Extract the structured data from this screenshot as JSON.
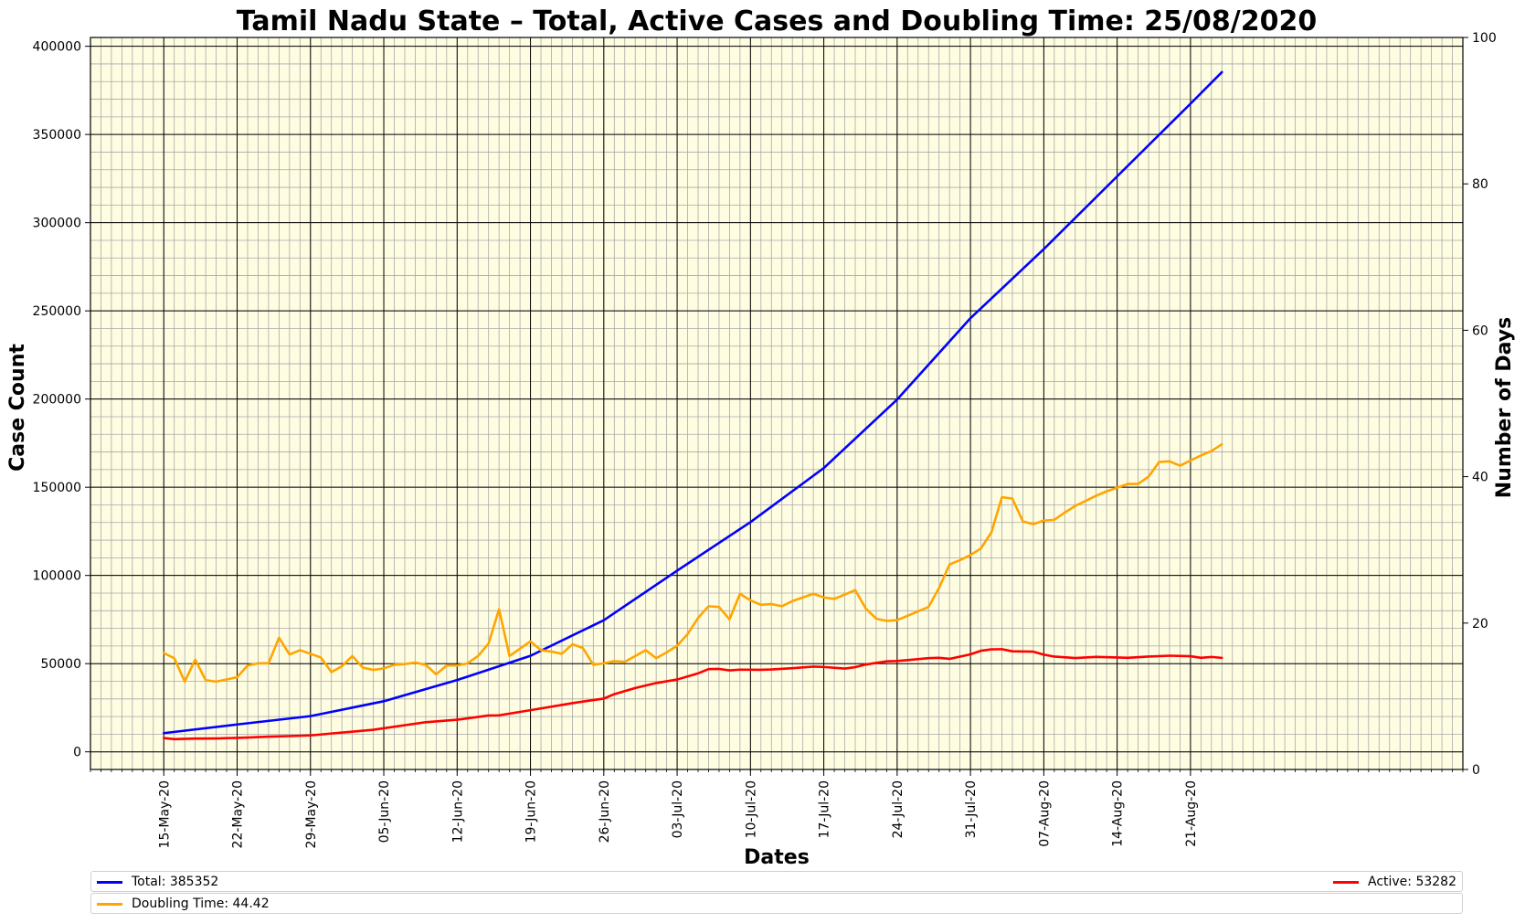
{
  "chart_data": {
    "type": "line",
    "title": "Tamil Nadu State – Total, Active Cases and Doubling Time: 25/08/2020",
    "xlabel": "Dates",
    "ylabel": "Case Count",
    "y2label": "Number of Days",
    "ylim": [
      -10000,
      405000
    ],
    "y2lim": [
      0,
      100
    ],
    "yticks": [
      0,
      50000,
      100000,
      150000,
      200000,
      250000,
      300000,
      350000,
      400000
    ],
    "y2ticks": [
      0,
      20,
      40,
      60,
      80,
      100
    ],
    "start_date": "2020-05-15",
    "xlim_days": [
      -7,
      124
    ],
    "xtick_labels": [
      "15-May-20",
      "22-May-20",
      "29-May-20",
      "05-Jun-20",
      "12-Jun-20",
      "19-Jun-20",
      "26-Jun-20",
      "03-Jul-20",
      "10-Jul-20",
      "17-Jul-20",
      "24-Jul-20",
      "31-Jul-20",
      "07-Aug-20",
      "14-Aug-20",
      "21-Aug-20"
    ],
    "xtick_days": [
      0,
      7,
      14,
      21,
      28,
      35,
      42,
      49,
      56,
      63,
      70,
      77,
      84,
      91,
      98
    ],
    "grid": true,
    "background": "#fffde1",
    "series": [
      {
        "name": "Total",
        "color": "#0000ff",
        "axis": "left",
        "days": [
          0,
          7,
          14,
          21,
          28,
          35,
          42,
          49,
          56,
          63,
          70,
          77,
          84,
          91,
          98,
          101
        ],
        "values": [
          10585,
          15512,
          20246,
          28694,
          40698,
          54449,
          74622,
          102721,
          130261,
          160907,
          199749,
          245859,
          285024,
          326245,
          367430,
          385352
        ]
      },
      {
        "name": "Active",
        "color": "#ff0000",
        "axis": "left",
        "days": [
          0,
          1,
          3,
          5,
          8,
          10,
          13,
          14,
          16,
          20,
          25,
          28,
          31,
          32,
          35,
          39,
          40,
          42,
          43,
          45,
          47,
          49,
          51,
          52,
          53,
          54,
          55,
          57,
          58,
          60,
          62,
          63,
          65,
          66,
          67,
          69,
          70,
          71,
          73,
          74,
          75,
          76,
          77,
          78,
          79,
          80,
          81,
          83,
          84,
          85,
          87,
          89,
          91,
          92,
          94,
          96,
          98,
          99,
          100,
          101
        ],
        "values": [
          7800,
          7200,
          7500,
          7600,
          8100,
          8600,
          9100,
          9300,
          10400,
          12500,
          16800,
          18200,
          20600,
          20700,
          23600,
          27600,
          28500,
          30200,
          32700,
          36200,
          39000,
          41000,
          44500,
          46900,
          47000,
          46200,
          46600,
          46500,
          46700,
          47400,
          48300,
          48100,
          47200,
          48000,
          49500,
          51300,
          51500,
          52000,
          53100,
          53300,
          52700,
          54000,
          55300,
          57300,
          58100,
          58200,
          57000,
          56800,
          55100,
          54000,
          53200,
          53800,
          53500,
          53300,
          54000,
          54500,
          54200,
          53300,
          53800,
          53282
        ]
      },
      {
        "name": "Doubling Time",
        "color": "#ffa500",
        "axis": "right",
        "days": [
          0,
          1,
          2,
          3,
          4,
          5,
          6,
          7,
          8,
          9,
          10,
          11,
          12,
          13,
          14,
          15,
          16,
          17,
          18,
          19,
          20,
          21,
          22,
          23,
          24,
          25,
          26,
          27,
          28,
          29,
          30,
          31,
          32,
          33,
          34,
          35,
          36,
          37,
          38,
          39,
          40,
          41,
          42,
          43,
          44,
          45,
          46,
          47,
          48,
          49,
          50,
          51,
          52,
          53,
          54,
          55,
          56,
          57,
          58,
          59,
          60,
          61,
          62,
          63,
          64,
          65,
          66,
          67,
          68,
          69,
          70,
          71,
          72,
          73,
          74,
          75,
          76,
          77,
          78,
          79,
          80,
          81,
          82,
          83,
          84,
          85,
          86,
          87,
          88,
          89,
          90,
          91,
          92,
          93,
          94,
          95,
          96,
          97,
          98,
          99,
          100,
          101
        ],
        "values": [
          15.9,
          15.2,
          12.0,
          15.0,
          12.2,
          12.0,
          12.3,
          12.6,
          14.2,
          14.5,
          14.5,
          18.0,
          15.7,
          16.3,
          15.8,
          15.3,
          13.3,
          14.1,
          15.5,
          13.9,
          13.6,
          13.8,
          14.3,
          14.4,
          14.6,
          14.3,
          13.0,
          14.2,
          14.2,
          14.5,
          15.5,
          17.2,
          21.9,
          15.5,
          16.5,
          17.5,
          16.3,
          16.1,
          15.8,
          17.1,
          16.6,
          14.3,
          14.5,
          14.8,
          14.7,
          15.5,
          16.3,
          15.2,
          16.0,
          16.9,
          18.5,
          20.7,
          22.3,
          22.2,
          20.5,
          24.0,
          23.1,
          22.5,
          22.6,
          22.3,
          23.0,
          23.5,
          24.0,
          23.5,
          23.3,
          23.9,
          24.5,
          22.0,
          20.6,
          20.3,
          20.4,
          21.0,
          21.6,
          22.2,
          24.8,
          28.0,
          28.6,
          29.3,
          30.2,
          32.4,
          37.2,
          37.0,
          33.9,
          33.5,
          34.0,
          34.1,
          35.1,
          36.0,
          36.7,
          37.4,
          38.0,
          38.5,
          39.0,
          39.0,
          40.0,
          42.0,
          42.1,
          41.5,
          42.2,
          42.9,
          43.5,
          44.42
        ]
      }
    ],
    "legend_items": [
      {
        "label": "Total: 385352",
        "color": "#0000ff"
      },
      {
        "label": "Active: 53282",
        "color": "#ff0000"
      },
      {
        "label": "Doubling Time: 44.42",
        "color": "#ffa500"
      }
    ]
  }
}
